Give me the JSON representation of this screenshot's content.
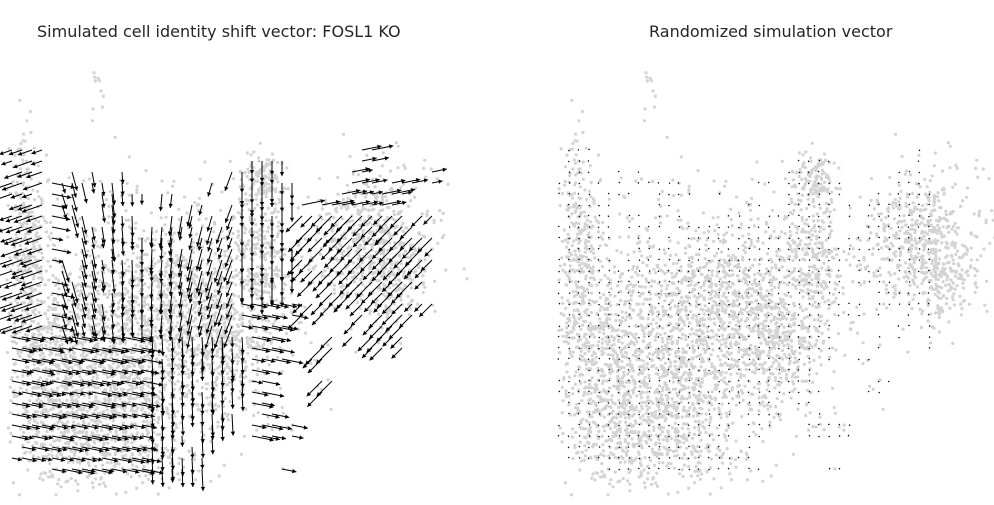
{
  "chart_data": [
    {
      "type": "scatter",
      "subtype": "vector-field-embedding",
      "title": "Simulated cell identity shift vector: FOSL1 KO",
      "point_color": "#d3d3d3",
      "arrow_color": "#000000",
      "axes_visible": false,
      "grid": false,
      "legend": false,
      "arrows": "large"
    },
    {
      "type": "scatter",
      "subtype": "vector-field-embedding",
      "title": "Randomized simulation vector",
      "point_color": "#d3d3d3",
      "arrow_color": "#000000",
      "axes_visible": false,
      "grid": false,
      "legend": false,
      "arrows": "negligible"
    }
  ]
}
